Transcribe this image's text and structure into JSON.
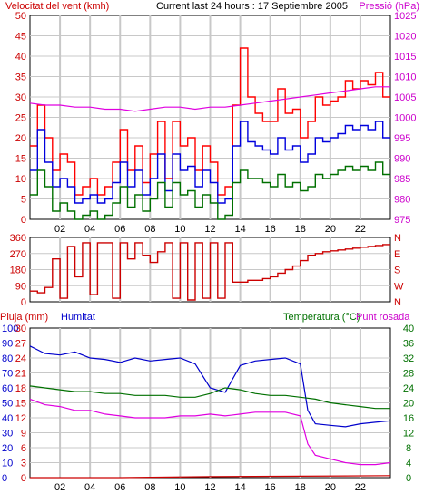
{
  "header": {
    "left_label": "Velocitat del vent (kmh)",
    "center_label": "Current last 24 hours : 17 Septiembre 2005",
    "right_label": "Pressió (hPa)"
  },
  "colors": {
    "wind_max": "#ff0000",
    "wind_avg": "#0000dd",
    "wind_min": "#007000",
    "pressure": "#e000e0",
    "direction": "#cc0000",
    "rain": "#cc0000",
    "humidity": "#0000cc",
    "temperature": "#007000",
    "dewpoint": "#e000e0",
    "grid": "#c8c8c8",
    "axis_left_top": "#cc0000",
    "axis_right_top": "#cc00cc",
    "axis_humidity": "#0000cc",
    "axis_temperature": "#007000"
  },
  "chart_data": [
    {
      "type": "line",
      "id": "wind_pressure",
      "title": "",
      "x_ticks": [
        "02",
        "04",
        "06",
        "08",
        "10",
        "12",
        "14",
        "16",
        "18",
        "20",
        "22"
      ],
      "y_left": {
        "label": "Velocitat del vent (kmh)",
        "ticks": [
          "0",
          "5",
          "10",
          "15",
          "20",
          "25",
          "30",
          "35",
          "40",
          "45",
          "50"
        ],
        "min": 0,
        "max": 50
      },
      "y_right": {
        "label": "Pressió (hPa)",
        "ticks": [
          "975",
          "980",
          "985",
          "990",
          "995",
          "1000",
          "1005",
          "1010",
          "1015",
          "1020",
          "1025"
        ],
        "min": 975,
        "max": 1025
      },
      "x_range": [
        0,
        24
      ],
      "series": [
        {
          "name": "gust",
          "axis": "left",
          "color_key": "wind_max",
          "x": [
            0,
            0.5,
            1,
            1.5,
            2,
            2.5,
            3,
            3.5,
            4,
            4.5,
            5,
            5.5,
            6,
            6.5,
            7,
            7.5,
            8,
            8.5,
            9,
            9.5,
            10,
            10.5,
            11,
            11.5,
            12,
            12.5,
            13,
            13.5,
            14,
            14.5,
            15,
            15.5,
            16,
            16.5,
            17,
            17.5,
            18,
            18.5,
            19,
            19.5,
            20,
            20.5,
            21,
            21.5,
            22,
            22.5,
            23,
            23.5
          ],
          "values": [
            18,
            28,
            20,
            12,
            16,
            14,
            6,
            8,
            10,
            6,
            8,
            14,
            22,
            12,
            18,
            9,
            16,
            24,
            10,
            24,
            18,
            20,
            12,
            18,
            14,
            6,
            8,
            28,
            42,
            30,
            26,
            24,
            24,
            32,
            26,
            27,
            20,
            24,
            30,
            28,
            29,
            30,
            34,
            32,
            34,
            33,
            36,
            30
          ]
        },
        {
          "name": "average",
          "axis": "left",
          "color_key": "wind_avg",
          "x": [
            0,
            0.5,
            1,
            1.5,
            2,
            2.5,
            3,
            3.5,
            4,
            4.5,
            5,
            5.5,
            6,
            6.5,
            7,
            7.5,
            8,
            8.5,
            9,
            9.5,
            10,
            10.5,
            11,
            11.5,
            12,
            12.5,
            13,
            13.5,
            14,
            14.5,
            15,
            15.5,
            16,
            16.5,
            17,
            17.5,
            18,
            18.5,
            19,
            19.5,
            20,
            20.5,
            21,
            21.5,
            22,
            22.5,
            23,
            23.5
          ],
          "values": [
            12,
            22,
            14,
            8,
            10,
            8,
            4,
            5,
            6,
            4,
            5,
            9,
            14,
            8,
            12,
            6,
            10,
            16,
            7,
            16,
            12,
            13,
            8,
            12,
            9,
            4,
            5,
            18,
            24,
            19,
            18,
            17,
            16,
            20,
            17,
            18,
            14,
            16,
            20,
            19,
            20,
            21,
            23,
            22,
            23,
            22,
            24,
            20
          ]
        },
        {
          "name": "minimum",
          "axis": "left",
          "color_key": "wind_min",
          "x": [
            0,
            0.5,
            1,
            1.5,
            2,
            2.5,
            3,
            3.5,
            4,
            4.5,
            5,
            5.5,
            6,
            6.5,
            7,
            7.5,
            8,
            8.5,
            9,
            9.5,
            10,
            10.5,
            11,
            11.5,
            12,
            12.5,
            13,
            13.5,
            14,
            14.5,
            15,
            15.5,
            16,
            16.5,
            17,
            17.5,
            18,
            18.5,
            19,
            19.5,
            20,
            20.5,
            21,
            21.5,
            22,
            22.5,
            23,
            23.5
          ],
          "values": [
            6,
            12,
            8,
            2,
            4,
            2,
            0,
            1,
            2,
            0,
            1,
            4,
            8,
            3,
            6,
            2,
            5,
            9,
            3,
            9,
            6,
            7,
            3,
            6,
            4,
            0,
            1,
            9,
            12,
            10,
            10,
            9,
            8,
            11,
            8,
            9,
            7,
            8,
            11,
            10,
            11,
            12,
            13,
            12,
            13,
            12,
            14,
            11
          ]
        },
        {
          "name": "pressure",
          "axis": "right",
          "color_key": "pressure",
          "x": [
            0,
            1,
            2,
            3,
            4,
            5,
            6,
            7,
            8,
            9,
            10,
            11,
            12,
            13,
            14,
            15,
            16,
            17,
            18,
            19,
            20,
            21,
            22,
            23,
            24
          ],
          "values": [
            1003.5,
            1003,
            1003,
            1002.5,
            1002.5,
            1002,
            1002,
            1001.5,
            1002,
            1002.5,
            1002.5,
            1002,
            1002.5,
            1002.5,
            1003,
            1003.5,
            1004,
            1004.5,
            1005,
            1005.5,
            1006,
            1006.5,
            1007,
            1007.5,
            1007.5
          ]
        }
      ]
    },
    {
      "type": "line",
      "id": "wind_direction",
      "title": "",
      "y_left": {
        "ticks": [
          "0",
          "90",
          "180",
          "270",
          "360"
        ],
        "min": 0,
        "max": 360
      },
      "y_right": {
        "ticks": [
          "N",
          "W",
          "S",
          "E",
          "N"
        ]
      },
      "x_range": [
        0,
        24
      ],
      "series": [
        {
          "name": "direction",
          "color_key": "direction",
          "x": [
            0,
            0.5,
            1,
            1.5,
            2,
            2.5,
            3,
            3.5,
            4,
            4.5,
            5,
            5.5,
            6,
            6.5,
            7,
            7.5,
            8,
            8.5,
            9,
            9.5,
            10,
            10.5,
            11,
            11.5,
            12,
            12.5,
            13,
            13.5,
            14,
            14.5,
            15,
            15.5,
            16,
            16.5,
            17,
            17.5,
            18,
            18.5,
            19,
            19.5,
            20,
            20.5,
            21,
            21.5,
            22,
            22.5,
            23,
            23.5
          ],
          "values": [
            60,
            50,
            80,
            240,
            20,
            310,
            140,
            330,
            40,
            330,
            330,
            20,
            330,
            240,
            330,
            260,
            220,
            280,
            330,
            20,
            330,
            10,
            330,
            20,
            330,
            20,
            330,
            110,
            110,
            120,
            120,
            130,
            140,
            160,
            180,
            200,
            230,
            260,
            270,
            280,
            285,
            290,
            295,
            300,
            305,
            310,
            315,
            320
          ]
        }
      ]
    },
    {
      "type": "line",
      "id": "rain_humidity_temperature",
      "title": "",
      "y_labels_header": {
        "rain": "Pluja (mm)",
        "humidity": "Humitat",
        "temperature": "Temperatura (°C)",
        "dewpoint": "Punt rosada"
      },
      "y_rain": {
        "ticks": [
          "0",
          "3",
          "6",
          "9",
          "12",
          "15",
          "18",
          "21",
          "24",
          "27",
          "30"
        ],
        "min": 0,
        "max": 30
      },
      "y_humidity": {
        "ticks": [
          "0",
          "10",
          "20",
          "30",
          "40",
          "50",
          "60",
          "70",
          "80",
          "90",
          "100"
        ],
        "min": 0,
        "max": 100
      },
      "y_temperature": {
        "ticks": [
          "0",
          "4",
          "8",
          "12",
          "16",
          "20",
          "24",
          "28",
          "32",
          "36",
          "40"
        ],
        "min": 0,
        "max": 40
      },
      "x_ticks": [
        "02",
        "04",
        "06",
        "08",
        "10",
        "12",
        "14",
        "16",
        "18",
        "20",
        "22"
      ],
      "x_range": [
        0,
        24
      ],
      "series": [
        {
          "name": "rain",
          "axis": "rain",
          "color_key": "rain",
          "x": [
            0,
            6,
            12,
            18,
            24
          ],
          "values": [
            0,
            0,
            0.2,
            0.3,
            0.4
          ]
        },
        {
          "name": "humidity",
          "axis": "humidity",
          "color_key": "humidity",
          "x": [
            0,
            1,
            2,
            3,
            4,
            5,
            6,
            7,
            8,
            9,
            10,
            11,
            12,
            13,
            14,
            15,
            16,
            17,
            18,
            18.5,
            19,
            20,
            21,
            22,
            23,
            24
          ],
          "values": [
            88,
            83,
            82,
            84,
            80,
            79,
            77,
            80,
            78,
            79,
            80,
            76,
            60,
            57,
            75,
            78,
            79,
            80,
            76,
            45,
            36,
            35,
            34,
            36,
            37,
            38
          ]
        },
        {
          "name": "temperature",
          "axis": "temperature",
          "color_key": "temperature",
          "x": [
            0,
            1,
            2,
            3,
            4,
            5,
            6,
            7,
            8,
            9,
            10,
            11,
            12,
            13,
            14,
            15,
            16,
            17,
            18,
            19,
            20,
            21,
            22,
            23,
            24
          ],
          "values": [
            24.5,
            24,
            23.5,
            23,
            23,
            22.5,
            22.5,
            22,
            22,
            22,
            21.5,
            21.5,
            22.5,
            24,
            23.5,
            22.5,
            22,
            22,
            21.5,
            21,
            20,
            19.5,
            19,
            18.5,
            18.5
          ]
        },
        {
          "name": "dewpoint",
          "axis": "temperature",
          "color_key": "dewpoint",
          "x": [
            0,
            1,
            2,
            3,
            4,
            5,
            6,
            7,
            8,
            9,
            10,
            11,
            12,
            13,
            14,
            15,
            16,
            17,
            18,
            18.5,
            19,
            20,
            21,
            22,
            23,
            24
          ],
          "values": [
            21,
            19.5,
            19,
            18,
            18,
            17,
            16.5,
            16,
            16,
            16,
            16.5,
            16.5,
            17,
            16.5,
            17,
            17.5,
            17.5,
            17.5,
            16.5,
            9,
            6,
            5,
            4,
            3.5,
            3.5,
            4
          ]
        }
      ]
    }
  ]
}
